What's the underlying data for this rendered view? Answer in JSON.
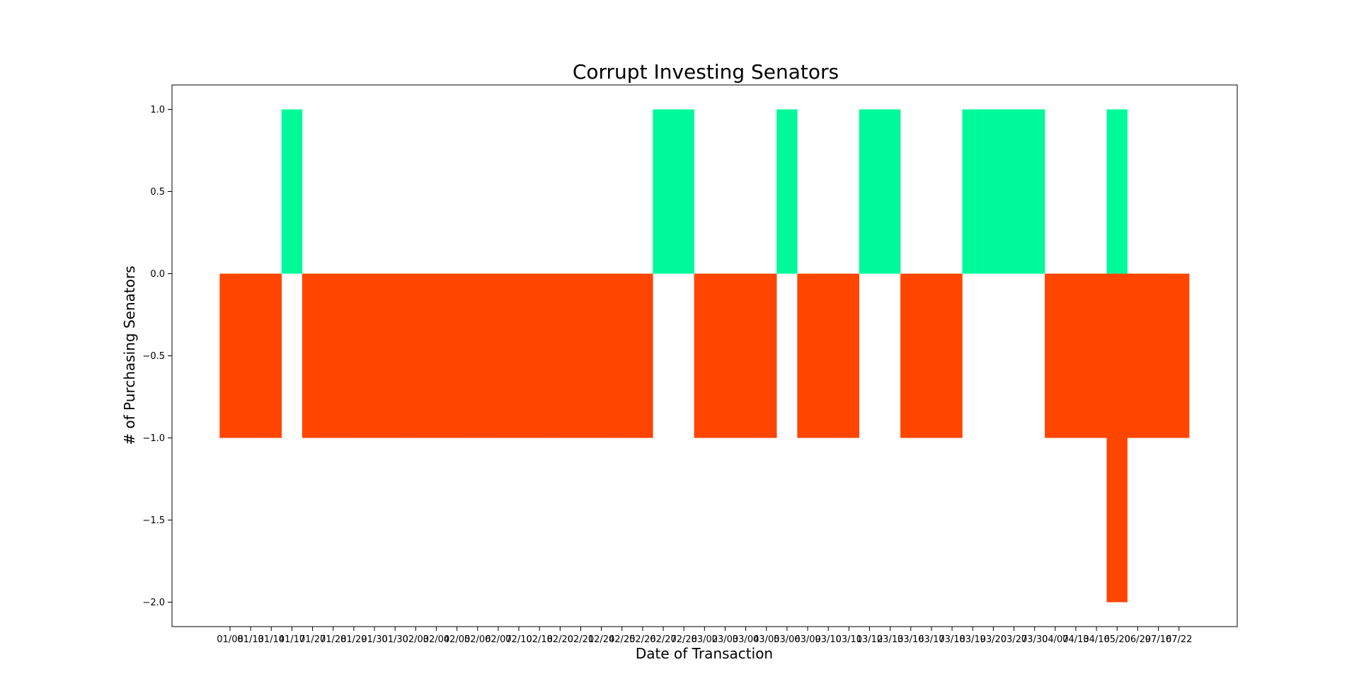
{
  "chart_data": {
    "type": "bar",
    "title": "Corrupt Investing Senators",
    "xlabel": "Date of Transaction",
    "ylabel": "# of Purchasing Senators",
    "ylim": [
      -2.15,
      1.15
    ],
    "yticks": [
      1.0,
      0.5,
      0.0,
      -0.5,
      -1.0,
      -1.5,
      -2.0
    ],
    "ytick_labels": [
      "1.0",
      "0.5",
      "0.0",
      "−0.5",
      "−1.0",
      "−1.5",
      "−2.0"
    ],
    "grid": false,
    "categories": [
      "01/08",
      "01/13",
      "01/14",
      "01/17",
      "01/27",
      "01/28",
      "01/29",
      "01/30",
      "01/30",
      "02/03",
      "02/04",
      "02/05",
      "02/06",
      "02/07",
      "02/10",
      "02/18",
      "02/20",
      "02/21",
      "02/24",
      "02/25",
      "02/26",
      "02/27",
      "02/28",
      "03/02",
      "03/03",
      "03/04",
      "03/05",
      "03/06",
      "03/09",
      "03/10",
      "03/11",
      "03/12",
      "03/13",
      "03/16",
      "03/17",
      "03/18",
      "03/19",
      "03/20",
      "03/27",
      "03/30",
      "04/07",
      "04/13",
      "04/16",
      "05/20",
      "06/29",
      "07/16",
      "07/22"
    ],
    "series": [
      {
        "color": "#00fa9a",
        "values": [
          0,
          0,
          0,
          1,
          0,
          0,
          0,
          0,
          0,
          0,
          0,
          0,
          0,
          0,
          0,
          0,
          0,
          0,
          0,
          0,
          0,
          1,
          1,
          0,
          0,
          0,
          0,
          1,
          0,
          0,
          0,
          1,
          1,
          0,
          0,
          0,
          1,
          1,
          1,
          1,
          0,
          0,
          0,
          1,
          0,
          0,
          0
        ]
      },
      {
        "color": "#ff4500",
        "values": [
          -1,
          -1,
          -1,
          0,
          -1,
          -1,
          -1,
          -1,
          -1,
          -1,
          -1,
          -1,
          -1,
          -1,
          -1,
          -1,
          -1,
          -1,
          -1,
          -1,
          -1,
          0,
          0,
          -1,
          -1,
          -1,
          -1,
          0,
          -1,
          -1,
          -1,
          0,
          0,
          -1,
          -1,
          -1,
          0,
          0,
          0,
          0,
          -1,
          -1,
          -1,
          -2,
          -1,
          -1,
          -1
        ]
      }
    ]
  }
}
